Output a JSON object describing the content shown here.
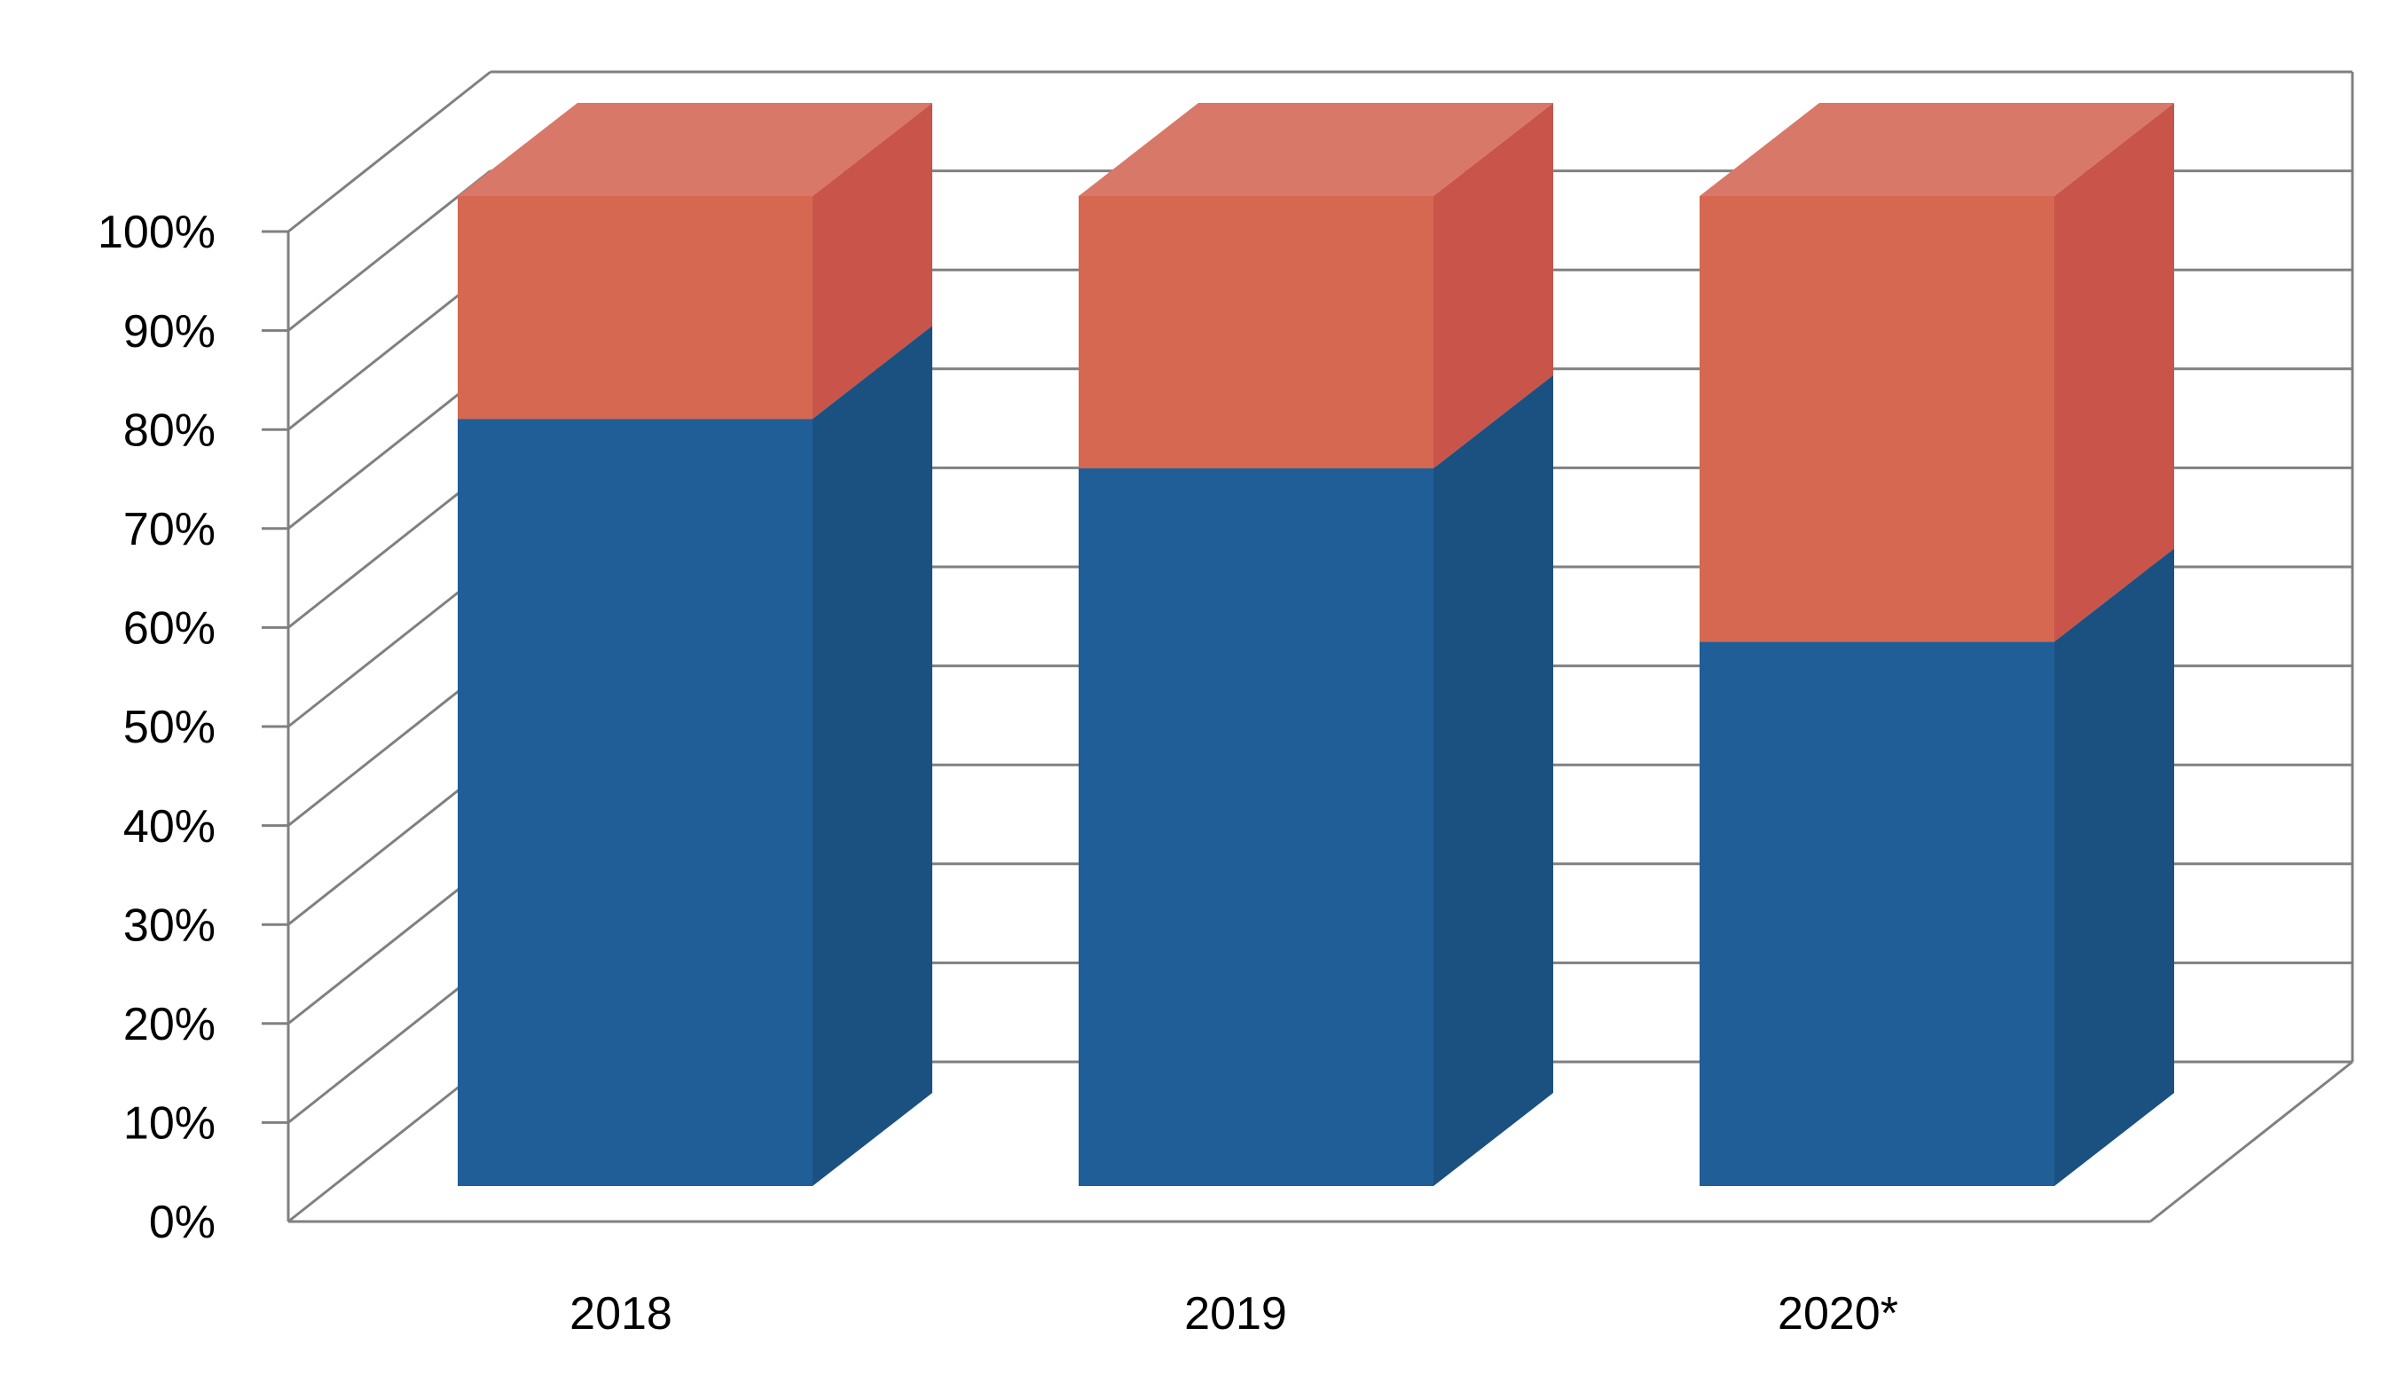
{
  "page": {
    "background": "#FFFFFF"
  },
  "chart_data": {
    "type": "bar",
    "subtype": "3d-column-100-percent-stacked",
    "title": "",
    "categories": [
      "2018",
      "2019",
      "2020*"
    ],
    "series": [
      {
        "name": "blue-bottom-segment",
        "values": [
          77.5,
          72.5,
          55
        ],
        "color_front": "#205E98",
        "color_side": "#1B5181",
        "color_top": "#3A6FA3"
      },
      {
        "name": "red-top-segment",
        "values": [
          22.5,
          27.5,
          45
        ],
        "color_front": "#D66851",
        "color_side": "#C8544A",
        "color_top": "#D87869"
      }
    ],
    "y_axis": {
      "unit": "%",
      "min": 0,
      "max": 100,
      "step": 10,
      "ticks": [
        "0%",
        "10%",
        "20%",
        "30%",
        "40%",
        "50%",
        "60%",
        "70%",
        "80%",
        "90%",
        "100%"
      ]
    },
    "x_axis": {
      "labels": [
        "2018",
        "2019",
        "2020*"
      ]
    },
    "grid": {
      "show": true,
      "color": "#808080"
    },
    "legend": {
      "show": false
    },
    "text_color": "#000000"
  }
}
